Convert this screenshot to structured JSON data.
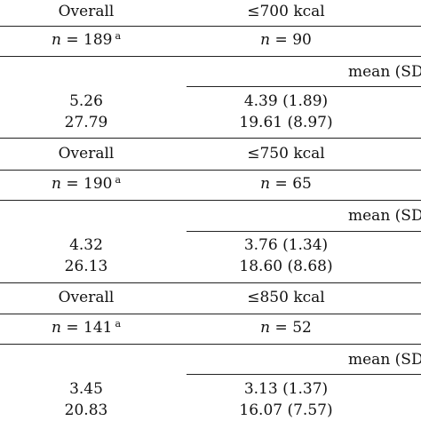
{
  "sections": [
    {
      "header": {
        "overall": "Overall",
        "threshold": "≤700 kcal"
      },
      "n_row": {
        "overall_n": "189",
        "overall_sup": "a",
        "threshold_n": "90"
      },
      "stat_label": "mean (SD",
      "rows": [
        {
          "overall": "5.26",
          "threshold": "4.39 (1.89)"
        },
        {
          "overall": "27.79",
          "threshold": "19.61 (8.97)"
        }
      ]
    },
    {
      "header": {
        "overall": "Overall",
        "threshold": "≤750 kcal"
      },
      "n_row": {
        "overall_n": "190",
        "overall_sup": "a",
        "threshold_n": "65"
      },
      "stat_label": "mean (SD",
      "rows": [
        {
          "overall": "4.32",
          "threshold": "3.76 (1.34)"
        },
        {
          "overall": "26.13",
          "threshold": "18.60 (8.68)"
        }
      ]
    },
    {
      "header": {
        "overall": "Overall",
        "threshold": "≤850 kcal"
      },
      "n_row": {
        "overall_n": "141",
        "overall_sup": "a",
        "threshold_n": "52"
      },
      "stat_label": "mean (SD",
      "rows": [
        {
          "overall": "3.45",
          "threshold": "3.13 (1.37)"
        },
        {
          "overall": "20.83",
          "threshold": "16.07 (7.57)"
        }
      ]
    }
  ]
}
